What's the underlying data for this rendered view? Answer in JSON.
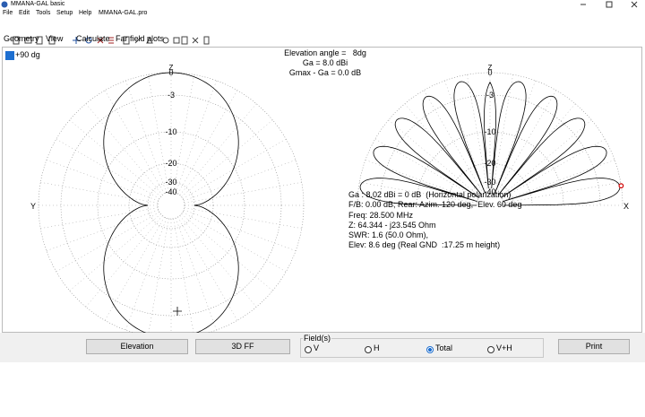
{
  "window": {
    "title": "MMANA-GAL basic"
  },
  "menu": [
    "File",
    "Edit",
    "Tools",
    "Setup",
    "Help",
    "MMANA-GAL.pro"
  ],
  "tabs": [
    "Geometry",
    "View",
    "Calculate",
    "Far field plots"
  ],
  "left_plot": {
    "checkbox": "+90 dg",
    "top_label": "Z",
    "axis_label": "Y",
    "rings": [
      0,
      -3,
      -10,
      -20,
      -30,
      -40
    ]
  },
  "info": [
    "Elevation angle =   8dg",
    "Ga = 8.0 dBi",
    "Gmax - Ga = 0.0 dB"
  ],
  "right_plot": {
    "top_label": "Z",
    "axis_label": "X",
    "rings": [
      0,
      -3,
      -10,
      -20,
      -30,
      -40
    ]
  },
  "results": [
    "Ga : 8.02 dBi = 0 dB  (Horizontal polarization)",
    "F/B: 0.00 dB; Rear: Azim. 120 deg,  Elev. 60 deg",
    "Freq: 28.500 MHz",
    "Z: 64.344 - j23.545 Ohm",
    "SWR: 1.6 (50.0 Ohm),",
    "Elev: 8.6 deg (Real GND  :17.25 m height)"
  ],
  "buttons": [
    "Elevation",
    "3D FF",
    "Print"
  ],
  "fields": {
    "title": "Field(s)",
    "options": [
      "V",
      "H",
      "Total",
      "V+H"
    ],
    "selected": 2
  }
}
